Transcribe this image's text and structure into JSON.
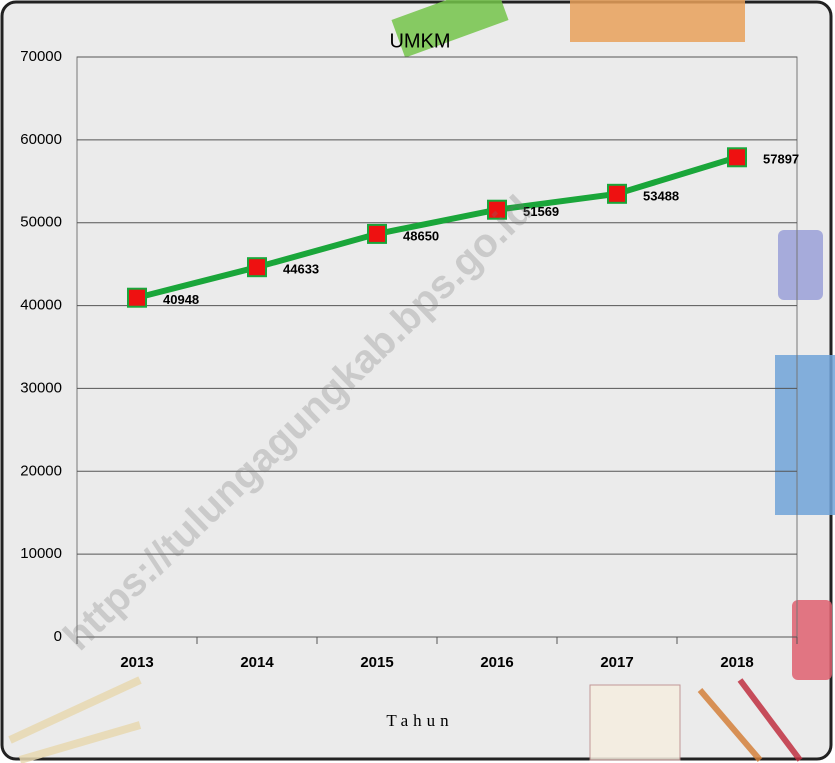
{
  "chart_data": {
    "type": "line",
    "title": "UMKM",
    "x_label": "Tahun",
    "categories": [
      "2013",
      "2014",
      "2015",
      "2016",
      "2017",
      "2018"
    ],
    "series": [
      {
        "name": "UMKM",
        "color": "#1aa63a",
        "marker_color": "#ee1111",
        "values": [
          40948,
          44633,
          48650,
          51569,
          53488,
          57897
        ]
      }
    ],
    "ylim": [
      0,
      70000
    ],
    "yticks": [
      0,
      10000,
      20000,
      30000,
      40000,
      50000,
      60000,
      70000
    ],
    "grid": true,
    "watermark": "https://tulungagungkab.bps.go.id"
  }
}
